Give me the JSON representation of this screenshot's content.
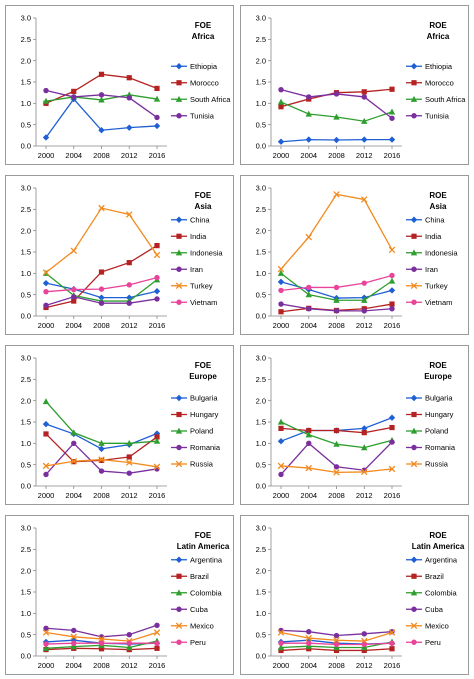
{
  "chart_data": [
    {
      "type": "line",
      "title": "FOE",
      "subtitle": "Africa",
      "ylim": [
        0,
        3
      ],
      "yticks": [
        "0.0",
        "0.5",
        "1.0",
        "1.5",
        "2.0",
        "2.5",
        "3.0"
      ],
      "categories": [
        "2000",
        "2004",
        "2008",
        "2012",
        "2016"
      ],
      "legend": "right",
      "series": [
        {
          "name": "Ethiopia",
          "values": [
            0.2,
            1.1,
            0.37,
            0.43,
            0.47
          ],
          "color": "#1f5fd4",
          "marker": "diamond"
        },
        {
          "name": "Morocco",
          "values": [
            1.0,
            1.28,
            1.68,
            1.6,
            1.35
          ],
          "color": "#b52222",
          "marker": "square"
        },
        {
          "name": "South Africa",
          "values": [
            1.05,
            1.15,
            1.08,
            1.2,
            1.1
          ],
          "color": "#2e9e2e",
          "marker": "triangle"
        },
        {
          "name": "Tunisia",
          "values": [
            1.3,
            1.15,
            1.2,
            1.13,
            0.67
          ],
          "color": "#7a2f9e",
          "marker": "circle"
        }
      ]
    },
    {
      "type": "line",
      "title": "ROE",
      "subtitle": "Africa",
      "ylim": [
        0,
        3
      ],
      "yticks": [
        "0.0",
        "0.5",
        "1.0",
        "1.5",
        "2.0",
        "2.5",
        "3.0"
      ],
      "categories": [
        "2000",
        "2004",
        "2008",
        "2012",
        "2016"
      ],
      "legend": "right",
      "series": [
        {
          "name": "Ethiopia",
          "values": [
            0.1,
            0.15,
            0.14,
            0.15,
            0.15
          ],
          "color": "#1f5fd4",
          "marker": "diamond"
        },
        {
          "name": "Morocco",
          "values": [
            0.92,
            1.1,
            1.25,
            1.27,
            1.33
          ],
          "color": "#b52222",
          "marker": "square"
        },
        {
          "name": "South Africa",
          "values": [
            1.03,
            0.75,
            0.68,
            0.58,
            0.8
          ],
          "color": "#2e9e2e",
          "marker": "triangle"
        },
        {
          "name": "Tunisia",
          "values": [
            1.32,
            1.15,
            1.22,
            1.15,
            0.65
          ],
          "color": "#7a2f9e",
          "marker": "circle"
        }
      ]
    },
    {
      "type": "line",
      "title": "FOE",
      "subtitle": "Asia",
      "ylim": [
        0,
        3
      ],
      "yticks": [
        "0.0",
        "0.5",
        "1.0",
        "1.5",
        "2.0",
        "2.5",
        "3.0"
      ],
      "categories": [
        "2000",
        "2004",
        "2008",
        "2012",
        "2016"
      ],
      "legend": "right",
      "series": [
        {
          "name": "China",
          "values": [
            0.77,
            0.63,
            0.43,
            0.43,
            0.58
          ],
          "color": "#1f5fd4",
          "marker": "diamond"
        },
        {
          "name": "India",
          "values": [
            0.2,
            0.35,
            1.03,
            1.25,
            1.65
          ],
          "color": "#b52222",
          "marker": "square"
        },
        {
          "name": "Indonesia",
          "values": [
            1.0,
            0.48,
            0.35,
            0.35,
            0.85
          ],
          "color": "#2e9e2e",
          "marker": "triangle"
        },
        {
          "name": "Iran",
          "values": [
            0.25,
            0.45,
            0.3,
            0.3,
            0.4
          ],
          "color": "#7a2f9e",
          "marker": "circle"
        },
        {
          "name": "Turkey",
          "values": [
            1.02,
            1.53,
            2.53,
            2.38,
            1.43
          ],
          "color": "#f28a1e",
          "marker": "cross"
        },
        {
          "name": "Vietnam",
          "values": [
            0.57,
            0.62,
            0.63,
            0.73,
            0.9
          ],
          "color": "#e8449a",
          "marker": "circle"
        }
      ]
    },
    {
      "type": "line",
      "title": "ROE",
      "subtitle": "Asia",
      "ylim": [
        0,
        3
      ],
      "yticks": [
        "0.0",
        "0.5",
        "1.0",
        "1.5",
        "2.0",
        "2.5",
        "3.0"
      ],
      "categories": [
        "2000",
        "2004",
        "2008",
        "2012",
        "2016"
      ],
      "legend": "right",
      "series": [
        {
          "name": "China",
          "values": [
            0.8,
            0.62,
            0.42,
            0.43,
            0.6
          ],
          "color": "#1f5fd4",
          "marker": "diamond"
        },
        {
          "name": "India",
          "values": [
            0.1,
            0.18,
            0.13,
            0.17,
            0.28
          ],
          "color": "#b52222",
          "marker": "square"
        },
        {
          "name": "Indonesia",
          "values": [
            1.0,
            0.5,
            0.37,
            0.37,
            0.82
          ],
          "color": "#2e9e2e",
          "marker": "triangle"
        },
        {
          "name": "Iran",
          "values": [
            0.28,
            0.17,
            0.12,
            0.12,
            0.17
          ],
          "color": "#7a2f9e",
          "marker": "circle"
        },
        {
          "name": "Turkey",
          "values": [
            1.1,
            1.85,
            2.85,
            2.73,
            1.55
          ],
          "color": "#f28a1e",
          "marker": "cross"
        },
        {
          "name": "Vietnam",
          "values": [
            0.6,
            0.67,
            0.67,
            0.77,
            0.95
          ],
          "color": "#e8449a",
          "marker": "circle"
        }
      ]
    },
    {
      "type": "line",
      "title": "FOE",
      "subtitle": "Europe",
      "ylim": [
        0,
        3
      ],
      "yticks": [
        "0.0",
        "0.5",
        "1.0",
        "1.5",
        "2.0",
        "2.5",
        "3.0"
      ],
      "categories": [
        "2000",
        "2004",
        "2008",
        "2012",
        "2016"
      ],
      "legend": "right",
      "series": [
        {
          "name": "Bulgaria",
          "values": [
            1.45,
            1.22,
            0.87,
            0.97,
            1.23
          ],
          "color": "#1f5fd4",
          "marker": "diamond"
        },
        {
          "name": "Hungary",
          "values": [
            1.22,
            0.57,
            0.6,
            0.68,
            1.15
          ],
          "color": "#b52222",
          "marker": "square"
        },
        {
          "name": "Poland",
          "values": [
            1.98,
            1.25,
            1.0,
            1.0,
            1.05
          ],
          "color": "#2e9e2e",
          "marker": "triangle"
        },
        {
          "name": "Romania",
          "values": [
            0.27,
            1.0,
            0.35,
            0.3,
            0.4
          ],
          "color": "#7a2f9e",
          "marker": "circle"
        },
        {
          "name": "Russia",
          "values": [
            0.47,
            0.58,
            0.62,
            0.55,
            0.45
          ],
          "color": "#f28a1e",
          "marker": "cross"
        }
      ]
    },
    {
      "type": "line",
      "title": "ROE",
      "subtitle": "Europe",
      "ylim": [
        0,
        3
      ],
      "yticks": [
        "0.0",
        "0.5",
        "1.0",
        "1.5",
        "2.0",
        "2.5",
        "3.0"
      ],
      "categories": [
        "2000",
        "2004",
        "2008",
        "2012",
        "2016"
      ],
      "legend": "right",
      "series": [
        {
          "name": "Bulgaria",
          "values": [
            1.05,
            1.3,
            1.3,
            1.35,
            1.6
          ],
          "color": "#1f5fd4",
          "marker": "diamond"
        },
        {
          "name": "Hungary",
          "values": [
            1.35,
            1.3,
            1.3,
            1.25,
            1.37
          ],
          "color": "#b52222",
          "marker": "square"
        },
        {
          "name": "Poland",
          "values": [
            1.5,
            1.2,
            0.98,
            0.9,
            1.07
          ],
          "color": "#2e9e2e",
          "marker": "triangle"
        },
        {
          "name": "Romania",
          "values": [
            0.27,
            1.0,
            0.45,
            0.37,
            1.03
          ],
          "color": "#7a2f9e",
          "marker": "circle"
        },
        {
          "name": "Russia",
          "values": [
            0.47,
            0.42,
            0.32,
            0.33,
            0.4
          ],
          "color": "#f28a1e",
          "marker": "cross"
        }
      ]
    },
    {
      "type": "line",
      "title": "FOE",
      "subtitle": "Latin America",
      "ylim": [
        0,
        3
      ],
      "yticks": [
        "0.0",
        "0.5",
        "1.0",
        "1.5",
        "2.0",
        "2.5",
        "3.0"
      ],
      "categories": [
        "2000",
        "2004",
        "2008",
        "2012",
        "2016"
      ],
      "legend": "right",
      "series": [
        {
          "name": "Argentina",
          "values": [
            0.33,
            0.37,
            0.3,
            0.28,
            0.3
          ],
          "color": "#1f5fd4",
          "marker": "diamond"
        },
        {
          "name": "Brazil",
          "values": [
            0.15,
            0.18,
            0.17,
            0.15,
            0.18
          ],
          "color": "#b52222",
          "marker": "square"
        },
        {
          "name": "Colombia",
          "values": [
            0.18,
            0.22,
            0.25,
            0.2,
            0.35
          ],
          "color": "#2e9e2e",
          "marker": "triangle"
        },
        {
          "name": "Cuba",
          "values": [
            0.65,
            0.6,
            0.45,
            0.5,
            0.72
          ],
          "color": "#7a2f9e",
          "marker": "circle"
        },
        {
          "name": "Mexico",
          "values": [
            0.55,
            0.45,
            0.4,
            0.35,
            0.55
          ],
          "color": "#f28a1e",
          "marker": "cross"
        },
        {
          "name": "Peru",
          "values": [
            0.28,
            0.3,
            0.3,
            0.3,
            0.3
          ],
          "color": "#e8449a",
          "marker": "circle"
        }
      ]
    },
    {
      "type": "line",
      "title": "ROE",
      "subtitle": "Latin America",
      "ylim": [
        0,
        3
      ],
      "yticks": [
        "0.0",
        "0.5",
        "1.0",
        "1.5",
        "2.0",
        "2.5",
        "3.0"
      ],
      "categories": [
        "2000",
        "2004",
        "2008",
        "2012",
        "2016"
      ],
      "legend": "right",
      "series": [
        {
          "name": "Argentina",
          "values": [
            0.33,
            0.37,
            0.3,
            0.28,
            0.3
          ],
          "color": "#1f5fd4",
          "marker": "diamond"
        },
        {
          "name": "Brazil",
          "values": [
            0.13,
            0.17,
            0.13,
            0.13,
            0.17
          ],
          "color": "#b52222",
          "marker": "square"
        },
        {
          "name": "Colombia",
          "values": [
            0.2,
            0.23,
            0.2,
            0.2,
            0.33
          ],
          "color": "#2e9e2e",
          "marker": "triangle"
        },
        {
          "name": "Cuba",
          "values": [
            0.6,
            0.57,
            0.48,
            0.52,
            0.57
          ],
          "color": "#7a2f9e",
          "marker": "circle"
        },
        {
          "name": "Mexico",
          "values": [
            0.55,
            0.42,
            0.37,
            0.35,
            0.55
          ],
          "color": "#f28a1e",
          "marker": "cross"
        },
        {
          "name": "Peru",
          "values": [
            0.3,
            0.3,
            0.27,
            0.27,
            0.3
          ],
          "color": "#e8449a",
          "marker": "circle"
        }
      ]
    }
  ]
}
